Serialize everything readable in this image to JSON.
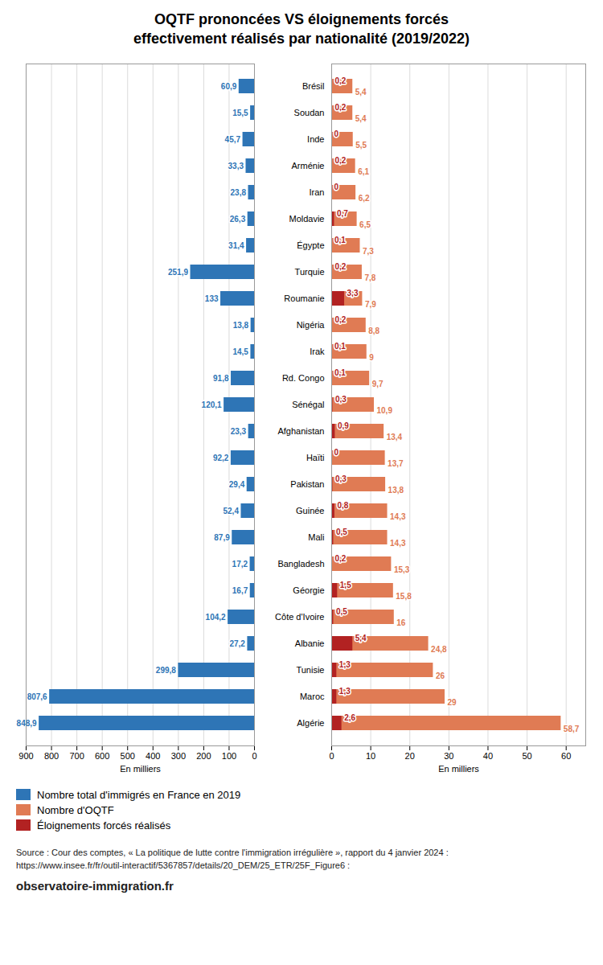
{
  "chart_data": [
    {
      "type": "bar",
      "orientation": "horizontal",
      "title": "OQTF prononcées VS éloignements forcés\neffectivement réalisés par nationalité (2019/2022)",
      "categories": [
        "Algérie",
        "Maroc",
        "Tunisie",
        "Albanie",
        "Côte d'Ivoire",
        "Géorgie",
        "Bangladesh",
        "Mali",
        "Guinée",
        "Pakistan",
        "Haïti",
        "Afghanistan",
        "Sénégal",
        "Rd. Congo",
        "Irak",
        "Nigéria",
        "Roumanie",
        "Turquie",
        "Égypte",
        "Moldavie",
        "Iran",
        "Arménie",
        "Inde",
        "Soudan",
        "Brésil"
      ],
      "series": [
        {
          "name": "Nombre total d'immigrés en France en 2019",
          "color": "#2E75B6",
          "values": [
            848.9,
            807.6,
            299.8,
            27.2,
            104.2,
            16.7,
            17.2,
            87.9,
            52.4,
            29.4,
            92.2,
            23.3,
            120.1,
            91.8,
            14.5,
            13.8,
            133,
            251.9,
            31.4,
            26.3,
            23.8,
            33.3,
            45.7,
            15.5,
            60.9
          ],
          "value_labels": [
            "848,9",
            "807,6",
            "299,8",
            "27,2",
            "104,2",
            "16,7",
            "17,2",
            "87,9",
            "52,4",
            "29,4",
            "92,2",
            "23,3",
            "120,1",
            "91,8",
            "14,5",
            "13,8",
            "133",
            "251,9",
            "31,4",
            "26,3",
            "23,8",
            "33,3",
            "45,7",
            "15,5",
            "60,9"
          ]
        }
      ],
      "xlim": [
        900,
        0
      ],
      "xticks": [
        0,
        100,
        200,
        300,
        400,
        500,
        600,
        700,
        800,
        900
      ],
      "xlabel": "En milliers",
      "grid": true,
      "data_labels": true,
      "legend": "lower left",
      "annotations": [
        "Source : Cour des comptes, « La politique de lutte contre l'immigration irrégulière », rapport du 4 janvier 2024 :\nhttps://www.insee.fr/fr/outil-interactif/5367857/details/20_DEM/25_ETR/25F_Figure6 :",
        "observatoire-immigration.fr"
      ]
    },
    {
      "type": "bar",
      "orientation": "horizontal",
      "stacked": false,
      "categories": [
        "Algérie",
        "Maroc",
        "Tunisie",
        "Albanie",
        "Côte d'Ivoire",
        "Géorgie",
        "Bangladesh",
        "Mali",
        "Guinée",
        "Pakistan",
        "Haïti",
        "Afghanistan",
        "Sénégal",
        "Rd. Congo",
        "Irak",
        "Nigéria",
        "Roumanie",
        "Turquie",
        "Égypte",
        "Moldavie",
        "Iran",
        "Arménie",
        "Inde",
        "Soudan",
        "Brésil"
      ],
      "series": [
        {
          "name": "Nombre d'OQTF",
          "color": "#E07B54",
          "values": [
            58.7,
            29.0,
            26.0,
            24.8,
            16.0,
            15.8,
            15.3,
            14.3,
            14.3,
            13.8,
            13.7,
            13.4,
            10.9,
            9.7,
            9.0,
            8.8,
            7.9,
            7.8,
            7.3,
            6.5,
            6.2,
            6.1,
            5.5,
            5.4,
            5.4
          ],
          "value_labels": [
            "58,7",
            "29",
            "26",
            "24,8",
            "16",
            "15,8",
            "15,3",
            "14,3",
            "14,3",
            "13,8",
            "13,7",
            "13,4",
            "10,9",
            "9,7",
            "9",
            "8,8",
            "7,9",
            "7,8",
            "7,3",
            "6,5",
            "6,2",
            "6,1",
            "5,5",
            "5,4",
            "5,4"
          ]
        },
        {
          "name": "Éloignements forcés réalisés",
          "color": "#B22222",
          "values": [
            2.6,
            1.3,
            1.3,
            5.4,
            0.5,
            1.5,
            0.2,
            0.5,
            0.8,
            0.3,
            0.0,
            0.9,
            0.3,
            0.1,
            0.1,
            0.2,
            3.3,
            0.2,
            0.1,
            0.7,
            0.0,
            0.2,
            0.0,
            0.2,
            0.2
          ],
          "value_labels": [
            "2,6",
            "1,3",
            "1,3",
            "5,4",
            "0,5",
            "1,5",
            "0,2",
            "0,5",
            "0,8",
            "0,3",
            "0",
            "0,9",
            "0,3",
            "0,1",
            "0,1",
            "0,2",
            "3,3",
            "0,2",
            "0,1",
            "0,7",
            "0",
            "0,2",
            "0",
            "0,2",
            "0,2"
          ]
        }
      ],
      "xlim": [
        0,
        65
      ],
      "xticks": [
        0,
        10,
        20,
        30,
        40,
        50,
        60
      ],
      "xlabel": "En milliers",
      "grid": true,
      "data_labels": true,
      "legend": "lower left"
    }
  ]
}
